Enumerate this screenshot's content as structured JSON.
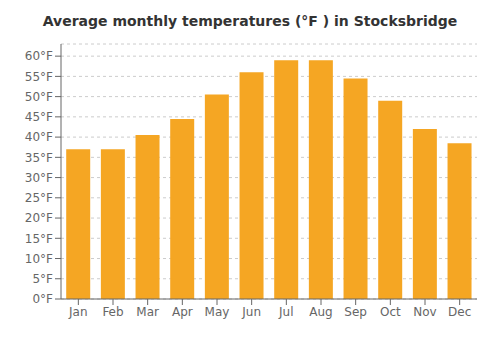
{
  "chart_data": {
    "type": "bar",
    "title": "Average monthly temperatures (°F ) in Stocksbridge",
    "categories": [
      "Jan",
      "Feb",
      "Mar",
      "Apr",
      "May",
      "Jun",
      "Jul",
      "Aug",
      "Sep",
      "Oct",
      "Nov",
      "Dec"
    ],
    "values": [
      37,
      37,
      40.5,
      44.5,
      50.5,
      56,
      59,
      59,
      54.5,
      49,
      42,
      38.5
    ],
    "color": "#F5A623",
    "ylim": [
      0,
      63
    ],
    "yticks": [
      {
        "value": 0,
        "label": "0°F"
      },
      {
        "value": 5,
        "label": "5°F"
      },
      {
        "value": 10,
        "label": "10°F"
      },
      {
        "value": 15,
        "label": "15°F"
      },
      {
        "value": 20,
        "label": "20°F"
      },
      {
        "value": 25,
        "label": "25°F"
      },
      {
        "value": 30,
        "label": "30°F"
      },
      {
        "value": 35,
        "label": "35°F"
      },
      {
        "value": 40,
        "label": "40°F"
      },
      {
        "value": 45,
        "label": "45°F"
      },
      {
        "value": 50,
        "label": "50°F"
      },
      {
        "value": 55,
        "label": "55°F"
      },
      {
        "value": 60,
        "label": "60°F"
      }
    ],
    "grid": true
  }
}
